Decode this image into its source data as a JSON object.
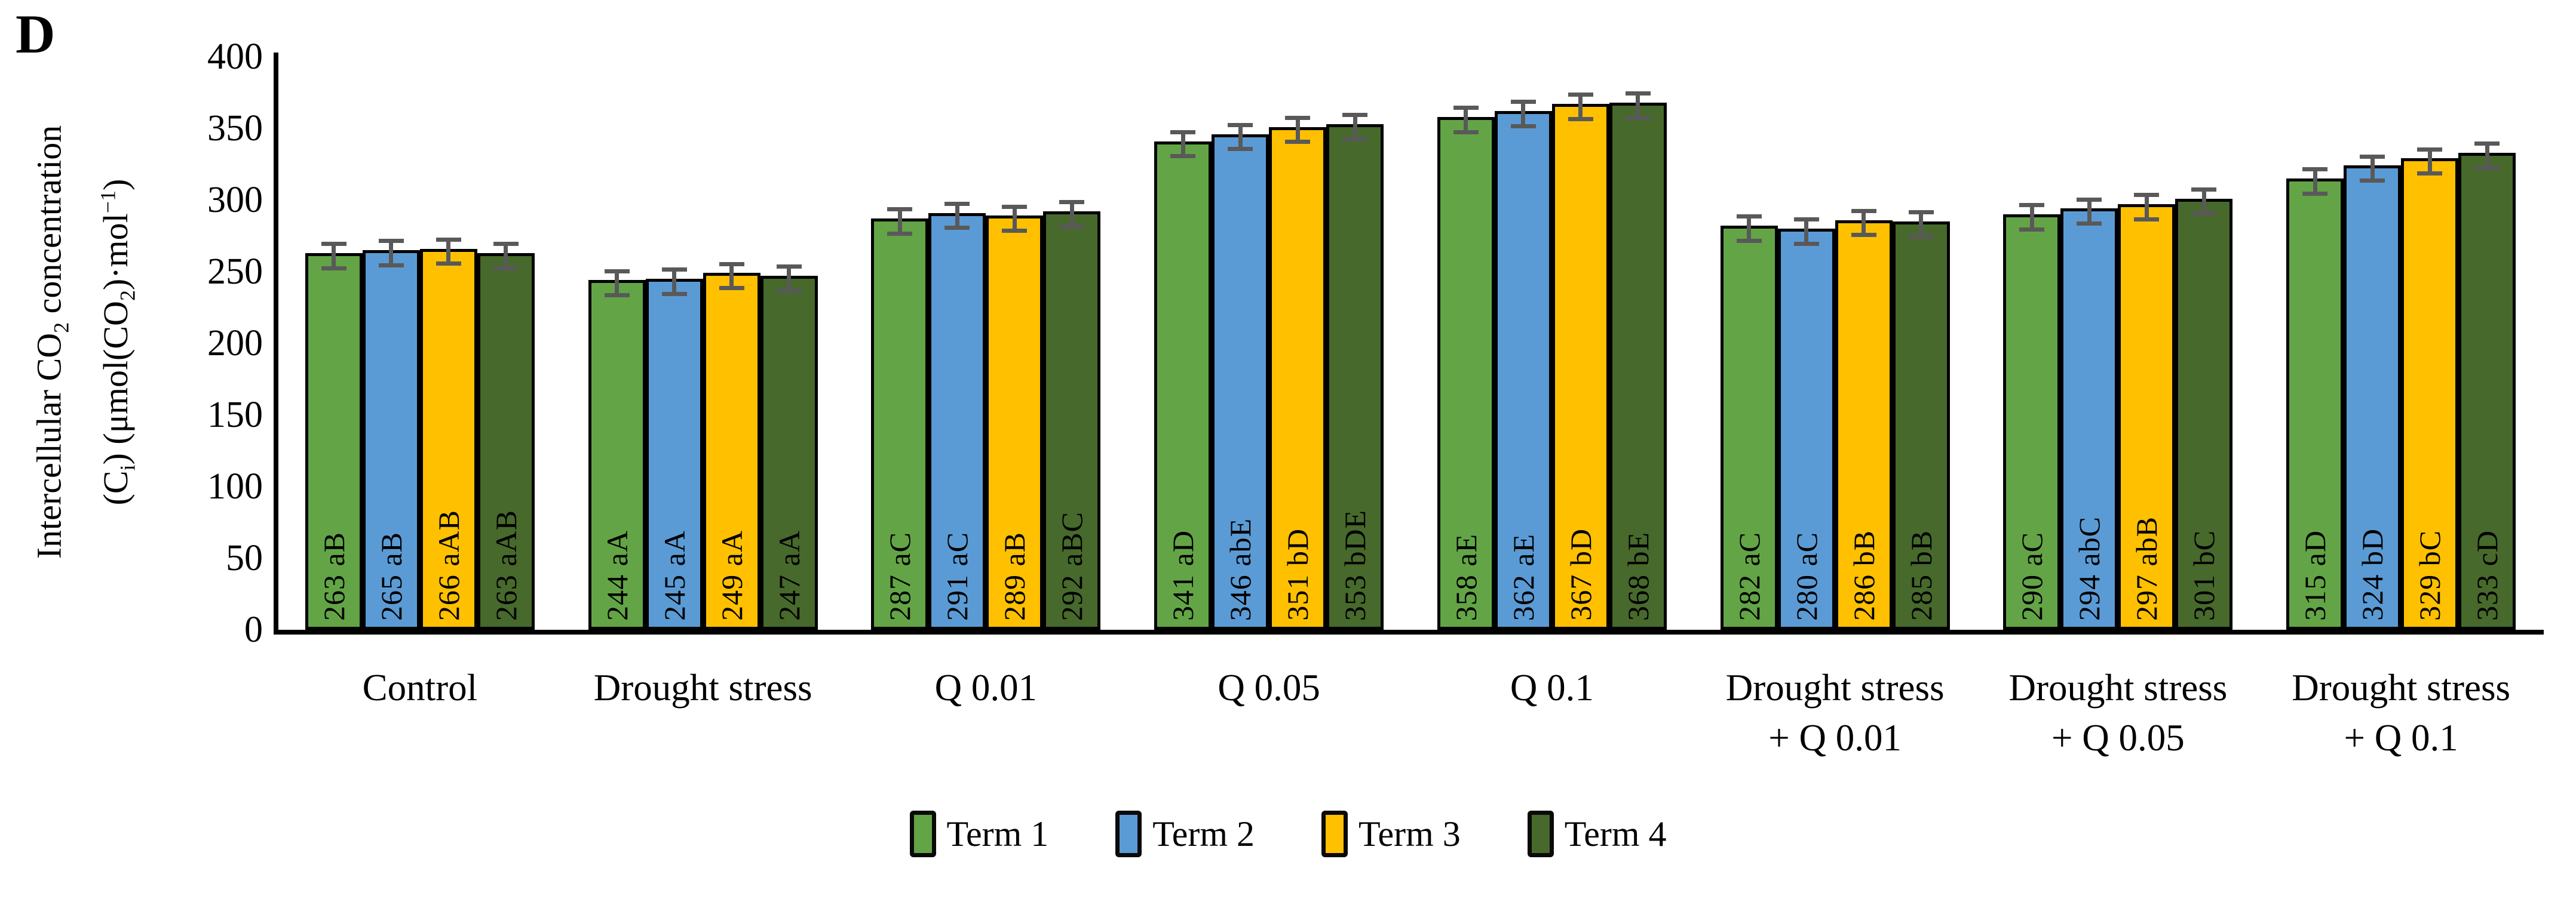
{
  "figure": {
    "panel_label": "D"
  },
  "chart_data": {
    "type": "bar",
    "title": "",
    "grid": false,
    "legend_position": "bottom",
    "y_axis": {
      "min": 0,
      "max": 400,
      "tick_step": 50,
      "ticks": [
        0,
        50,
        100,
        150,
        200,
        250,
        300,
        350,
        400
      ]
    },
    "y_axis_title_plain": "Intercellular CO₂ concentration (Cᵢ) (μmol(CO₂)·mol⁻¹)",
    "y_axis_title": {
      "lines": [
        [
          {
            "t": "Intercellular CO"
          },
          {
            "t": "2",
            "v": "sub"
          },
          {
            "t": " concentration"
          }
        ],
        [
          {
            "t": "(C"
          },
          {
            "t": "i",
            "v": "sub"
          },
          {
            "t": ") (μmol(CO"
          },
          {
            "t": "2",
            "v": "sub"
          },
          {
            "t": ")·mol"
          },
          {
            "t": "−1",
            "v": "sup"
          },
          {
            "t": ")"
          }
        ]
      ]
    },
    "categories": [
      "Control",
      "Drought stress",
      "Q 0.01",
      "Q 0.05",
      "Q 0.1",
      "Drought stress + Q 0.01",
      "Drought stress + Q 0.05",
      "Drought stress + Q 0.1"
    ],
    "category_label_lines": [
      [
        "Control"
      ],
      [
        "Drought stress"
      ],
      [
        "Q 0.01"
      ],
      [
        "Q 0.05"
      ],
      [
        "Q 0.1"
      ],
      [
        "Drought stress",
        "+ Q 0.01"
      ],
      [
        "Drought stress",
        "+ Q 0.05"
      ],
      [
        "Drought stress",
        "+ Q 0.1"
      ]
    ],
    "error_bar_value": 7,
    "error_bar_color": "#595959",
    "bar_border_color": "#000000",
    "series": [
      {
        "name": "Term 1",
        "color": "#63A546",
        "values": [
          263,
          244,
          287,
          341,
          358,
          282,
          290,
          315
        ],
        "bar_labels": [
          "263 aB",
          "244 aA",
          "287 aC",
          "341 aD",
          "358 aE",
          "282 aC",
          "290 aC",
          "315 aD"
        ]
      },
      {
        "name": "Term 2",
        "color": "#5B9BD5",
        "values": [
          265,
          245,
          291,
          346,
          362,
          280,
          294,
          324
        ],
        "bar_labels": [
          "265 aB",
          "245 aA",
          "291 aC",
          "346 abE",
          "362 aE",
          "280 aC",
          "294 abC",
          "324 bD"
        ]
      },
      {
        "name": "Term 3",
        "color": "#FFC000",
        "values": [
          266,
          249,
          289,
          351,
          367,
          286,
          297,
          329
        ],
        "bar_labels": [
          "266 aAB",
          "249 aA",
          "289 aB",
          "351 bD",
          "367 bD",
          "286 bB",
          "297 abB",
          "329 bC"
        ]
      },
      {
        "name": "Term 4",
        "color": "#47692B",
        "values": [
          263,
          247,
          292,
          353,
          368,
          285,
          301,
          333
        ],
        "bar_labels": [
          "263 aAB",
          "247 aA",
          "292 aBC",
          "353 bDE",
          "368 bE",
          "285 bB",
          "301 bC",
          "333 cD"
        ]
      }
    ]
  }
}
